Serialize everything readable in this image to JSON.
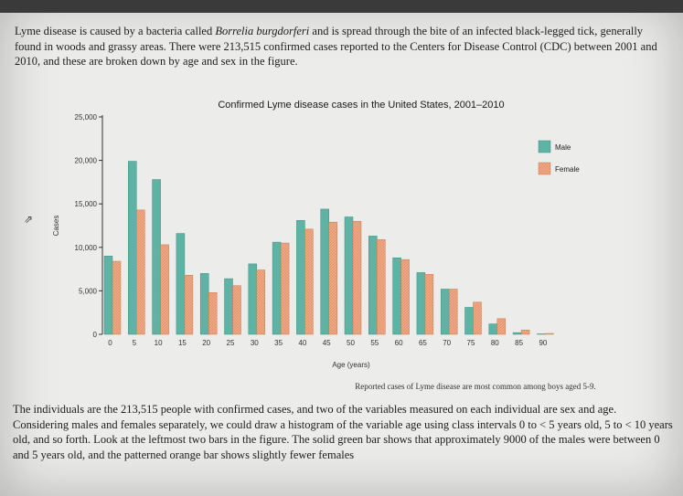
{
  "intro": {
    "lead": "Lyme disease is caused by a bacteria called ",
    "species": "Borrelia burgdorferi",
    "rest": " and is spread through the bite of an infected black-legged tick, generally found in woods and grassy areas. There were 213,515 confirmed cases reported to the Centers for Disease Control (CDC) between 2001 and 2010, and these are broken down by age and sex in the figure."
  },
  "body_text": "The individuals are the 213,515 people with confirmed cases, and two of the variables measured on each individual are sex and age. Considering males and females separately, we could draw a histogram of the variable age using class intervals 0 to < 5 years old, 5 to < 10 years old, and so forth. Look at the leftmost two bars in the figure. The solid green bar shows that approximately 9000 of the males were between 0 and 5 years old, and the patterned orange bar shows slightly fewer females",
  "caption": "Reported cases of Lyme disease are most common among boys aged 5-9.",
  "cursor_glyph": "⇗",
  "colors": {
    "male": "#5fb3a4",
    "female": "#f0a882",
    "axis": "#333333"
  },
  "chart_data": {
    "type": "bar",
    "title": "Confirmed Lyme disease cases in the United States, 2001–2010",
    "xlabel": "Age (years)",
    "ylabel": "Cases",
    "ylim": [
      0,
      25000
    ],
    "yticks": [
      "0",
      "5,000",
      "10,000",
      "15,000",
      "20,000",
      "25,000"
    ],
    "ytick_values": [
      0,
      5000,
      10000,
      15000,
      20000,
      25000
    ],
    "categories": [
      "0",
      "5",
      "10",
      "15",
      "20",
      "25",
      "30",
      "35",
      "40",
      "45",
      "50",
      "55",
      "60",
      "65",
      "70",
      "75",
      "80",
      "85",
      "90"
    ],
    "legend_position": "top-right",
    "series": [
      {
        "name": "Male",
        "values": [
          9000,
          19900,
          17800,
          11600,
          7000,
          6400,
          8100,
          10600,
          13100,
          14400,
          13500,
          11300,
          8800,
          7100,
          5200,
          3100,
          1200,
          200,
          50
        ]
      },
      {
        "name": "Female",
        "values": [
          8400,
          14300,
          10300,
          6800,
          4800,
          5600,
          7400,
          10500,
          12100,
          12900,
          13000,
          10900,
          8600,
          6900,
          5200,
          3700,
          1800,
          500,
          100
        ]
      }
    ]
  }
}
